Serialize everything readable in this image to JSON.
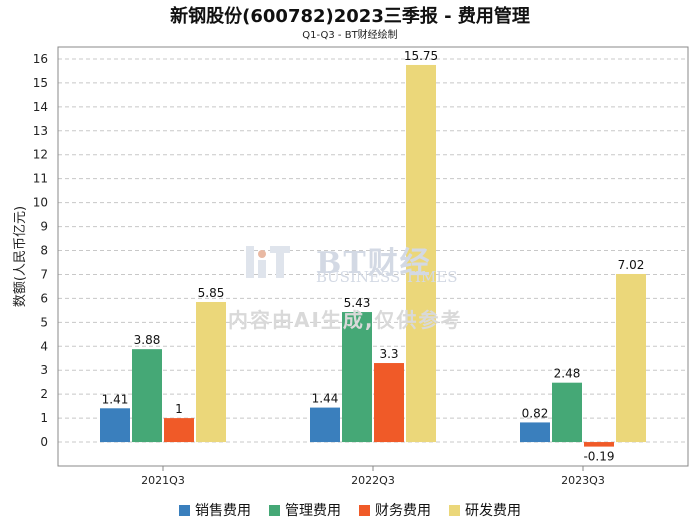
{
  "chart_data": {
    "type": "bar",
    "title": "新钢股份(600782)2023三季报 - 费用管理",
    "subtitle": "Q1-Q3 - BT财经绘制",
    "ylabel": "数额(人民币亿元)",
    "xlabel": "",
    "ylim": [
      -1,
      16.5
    ],
    "yticks": [
      0,
      1,
      2,
      3,
      4,
      5,
      6,
      7,
      8,
      9,
      10,
      11,
      12,
      13,
      14,
      15,
      16
    ],
    "categories": [
      "2021Q3",
      "2022Q3",
      "2023Q3"
    ],
    "series": [
      {
        "name": "销售费用",
        "color": "#3a7fbd",
        "values": [
          1.41,
          1.44,
          0.82
        ]
      },
      {
        "name": "管理费用",
        "color": "#45a876",
        "values": [
          3.88,
          5.43,
          2.48
        ]
      },
      {
        "name": "财务费用",
        "color": "#f05a28",
        "values": [
          1,
          3.3,
          -0.19
        ]
      },
      {
        "name": "研发费用",
        "color": "#ebd77a",
        "values": [
          5.85,
          15.75,
          7.02
        ]
      }
    ],
    "grid": true,
    "legend_position": "bottom-center"
  },
  "watermark": {
    "brand_cn": "BT财经",
    "brand_en": "BUSINESS TIMES",
    "note": "内容由AI生成,仅供参考"
  }
}
